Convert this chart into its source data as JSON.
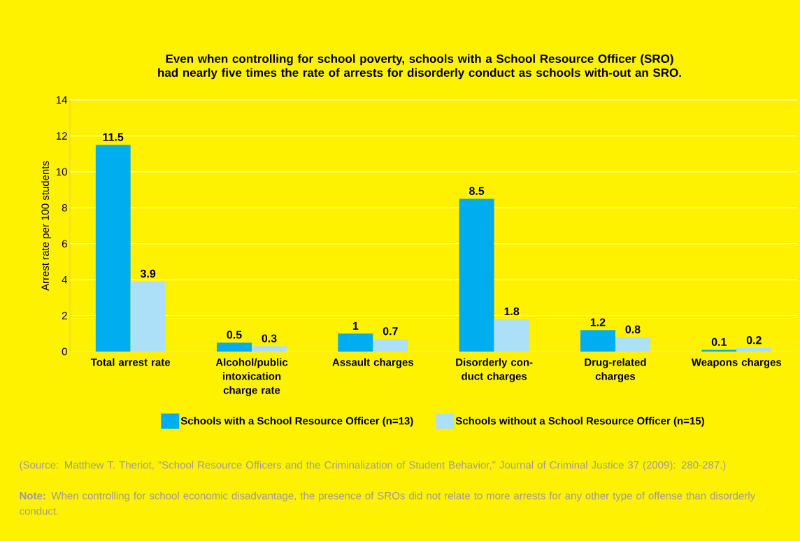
{
  "chart_data": {
    "type": "bar",
    "title": "Even when controlling for school poverty, schools with a School Resource Officer (SRO) had nearly five times the rate of arrests for disorderly conduct as schools with-out an SRO.",
    "ylabel": "Arrest rate per 100 students",
    "categories": [
      "Total arrest rate",
      "Alcohol/public intoxication charge rate",
      "Assault charges",
      "Disorderly con-duct charges",
      "Drug-related charges",
      "Weapons charges"
    ],
    "series": [
      {
        "name": "Schools with a School Resource Officer (n=13)",
        "color": "#00aeef",
        "values": [
          11.5,
          0.5,
          1,
          8.5,
          1.2,
          0.1
        ]
      },
      {
        "name": "Schools without a School Resource Officer (n=15)",
        "color": "#acdff8",
        "values": [
          3.9,
          0.3,
          0.7,
          1.8,
          0.8,
          0.2
        ]
      }
    ],
    "ylim": [
      0,
      14
    ],
    "yticks": [
      0,
      2,
      4,
      6,
      8,
      10,
      12,
      14
    ],
    "grid": "y",
    "legend": "bottom",
    "data_labels": true,
    "annotations": [
      "(Source: Matthew T. Theriot, \"School Resource Officers and the Criminalization of Student Behavior,\" Journal of Criminal Justice 37 (2009): 280-287.)",
      "**Note:** When controlling for school economic disadvantage, the presence of SROs did not relate to more arrests for any other type of offense than disorderly conduct."
    ]
  }
}
